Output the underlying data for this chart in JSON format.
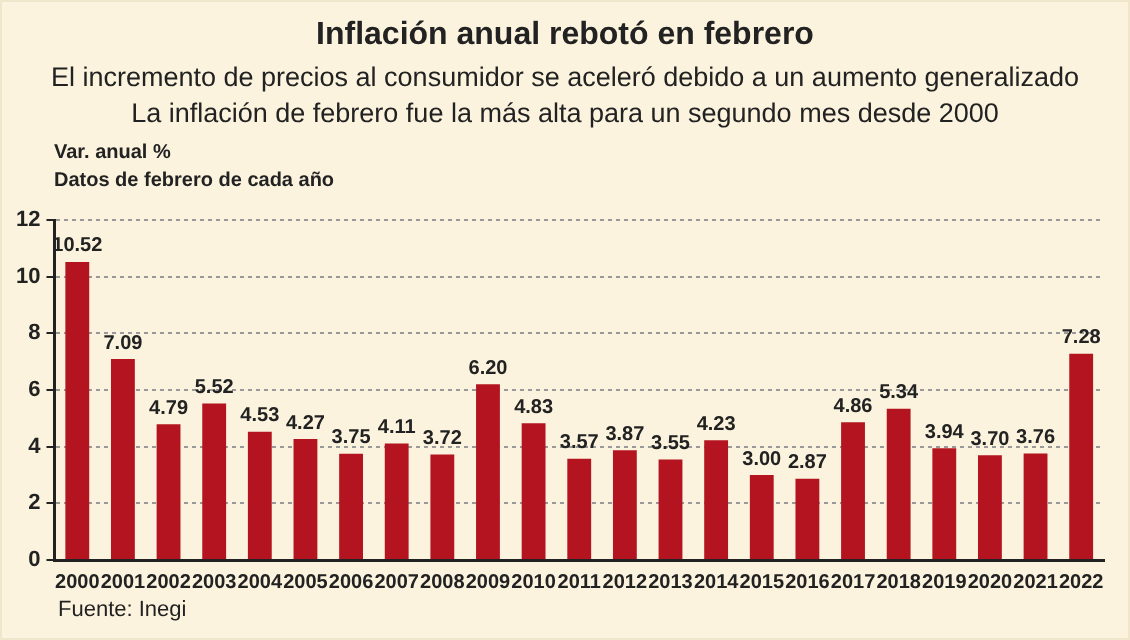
{
  "chart_data": {
    "type": "bar",
    "title": "Inflación anual rebotó en febrero",
    "subtitle": "El incremento de precios al consumidor se aceleró debido a un aumento generalizado",
    "ylabel": "Var. anual %",
    "annotations": [
      "La inflación de febrero fue la más alta para un segundo mes desde 2000",
      "Datos de febrero de cada año",
      "Fuente: Inegi"
    ],
    "categories": [
      "2000",
      "2001",
      "2002",
      "2003",
      "2004",
      "2005",
      "2006",
      "2007",
      "2008",
      "2009",
      "2010",
      "2011",
      "2012",
      "2013",
      "2014",
      "2015",
      "2016",
      "2017",
      "2018",
      "2019",
      "2020",
      "2021",
      "2022"
    ],
    "values": [
      10.52,
      7.09,
      4.79,
      5.52,
      4.53,
      4.27,
      3.75,
      4.11,
      3.72,
      6.2,
      4.83,
      3.57,
      3.87,
      3.55,
      4.23,
      3.0,
      2.87,
      4.86,
      5.34,
      3.94,
      3.7,
      3.76,
      7.28
    ],
    "value_labels": [
      "10.52",
      "7.09",
      "4.79",
      "5.52",
      "4.53",
      "4.27",
      "3.75",
      "4.11",
      "3.72",
      "6.20",
      "4.83",
      "3.57",
      "3.87",
      "3.55",
      "4.23",
      "3.00",
      "2.87",
      "4.86",
      "5.34",
      "3.94",
      "3.70",
      "3.76",
      "7.28"
    ],
    "color": "#b3141f",
    "ylim": [
      0,
      12
    ],
    "yticks": [
      0,
      2,
      4,
      6,
      8,
      10,
      12
    ],
    "grid": "y",
    "legend": false
  }
}
